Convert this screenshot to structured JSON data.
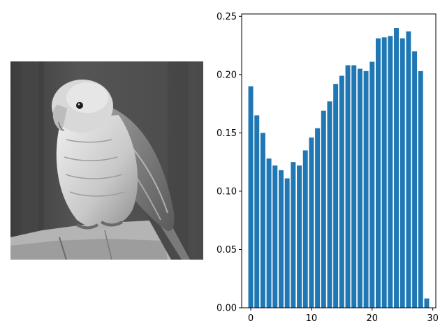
{
  "colors": {
    "bar": "#1f77b4",
    "axis": "#000000",
    "background": "#ffffff"
  },
  "image_panel": {
    "content": "grayscale photograph of a parrot perched on a tree stump",
    "icon": "parrot-photo-icon"
  },
  "chart_data": {
    "type": "bar",
    "title": "",
    "xlabel": "",
    "ylabel": "",
    "x": [
      0,
      1,
      2,
      3,
      4,
      5,
      6,
      7,
      8,
      9,
      10,
      11,
      12,
      13,
      14,
      15,
      16,
      17,
      18,
      19,
      20,
      21,
      22,
      23,
      24,
      25,
      26,
      27,
      28,
      29
    ],
    "values": [
      0.19,
      0.165,
      0.15,
      0.128,
      0.122,
      0.118,
      0.111,
      0.125,
      0.122,
      0.135,
      0.146,
      0.154,
      0.169,
      0.177,
      0.192,
      0.199,
      0.208,
      0.208,
      0.205,
      0.203,
      0.211,
      0.231,
      0.232,
      0.233,
      0.24,
      0.231,
      0.237,
      0.22,
      0.203,
      0.008
    ],
    "xlim": [
      -1.5,
      30.5
    ],
    "ylim": [
      0,
      0.252
    ],
    "xticks": [
      0,
      10,
      20,
      30
    ],
    "xtick_labels": [
      "0",
      "10",
      "20",
      "30"
    ],
    "yticks": [
      0,
      0.05,
      0.1,
      0.15,
      0.2,
      0.25
    ],
    "ytick_labels": [
      "0.00",
      "0.05",
      "0.10",
      "0.15",
      "0.20",
      "0.25"
    ],
    "grid": false,
    "legend": "none"
  }
}
